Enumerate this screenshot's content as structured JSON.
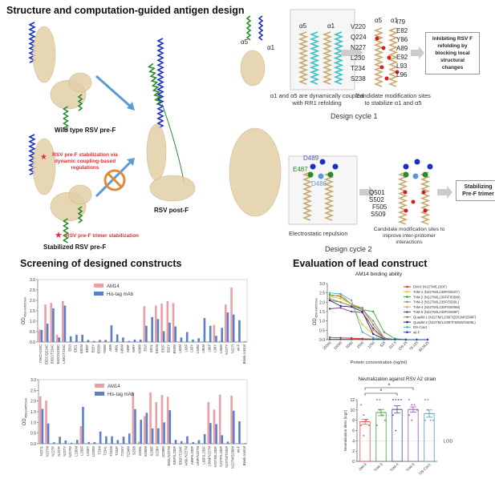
{
  "panel_a": {
    "title": "Structure and computation-guided antigen design",
    "wild_type_label": "Wild type RSV pre-F",
    "post_f_label": "RSV post-F",
    "stabilized_label": "Stabilized RSV pre-F",
    "annotation_coupling": "RSV pre-F stabilization via dynamic coupling-based regulations",
    "annotation_trimer": "RSV pre-F trimer stabilization",
    "cycle1": {
      "title": "Design cycle 1",
      "helix_labels": [
        "α5",
        "α1"
      ],
      "caption_left": "α1 and α5 are dynamically coupled with RR1 refolding",
      "caption_right": "Candidate modification sites to stabilize α1 and α5",
      "residues_left": [
        "V220",
        "Q224",
        "N227",
        "L230",
        "T234",
        "S238"
      ],
      "residues_right": [
        "I79",
        "E82",
        "Y86",
        "A89",
        "E92",
        "L93",
        "L96"
      ],
      "outcome": "Inhibiting RSV F refolding by blocking local structural changes"
    },
    "cycle2": {
      "title": "Design cycle 2",
      "residues_charged": [
        "D489",
        "E487",
        "D486"
      ],
      "caption_left": "Electrostatic repulsion",
      "caption_right": "Candidate modification sites to improve inter-protomer interactions",
      "residues": [
        "Q501",
        "S502",
        "F505",
        "S509"
      ],
      "outcome": "Stabilizing Pre-F trimer"
    },
    "colors": {
      "blue_helix": "#1a2fc0",
      "green_helix": "#2a8a2a",
      "tan_ribbon": "#e3cfa8",
      "cyan_helix": "#3cc0c0",
      "arrow": "#5b9bd5",
      "block": "#e08a3a",
      "annotation": "#e03030"
    }
  },
  "panel_b": {
    "title": "Screening of designed constructs"
  },
  "panel_c": {
    "title": "Evaluation of lead construct"
  },
  "chart_data": [
    {
      "type": "bar",
      "title": "",
      "ylabel": "OD450nm/650nm",
      "ylim": [
        0,
        3.0
      ],
      "yticks": [
        "0.0",
        "0.5",
        "1.0",
        "1.5",
        "2.0",
        "2.5",
        "3.0"
      ],
      "legend_placement": "top-left",
      "categories": [
        "I79C/V220C",
        "E82C/Q224C",
        "E82C/T234C",
        "E82C/S238C",
        "L93C/T234C",
        "E82I",
        "E82L",
        "E82M",
        "E82F",
        "E82Y",
        "E82W",
        "Y86W",
        "A89I",
        "A89L",
        "A89M",
        "A89F",
        "A89Y",
        "A89W",
        "E92I",
        "E92L",
        "E92M",
        "E92F",
        "E92Y",
        "E92W",
        "L93M",
        "L93F",
        "L93Y",
        "L93W",
        "L96M",
        "L96F",
        "L96Y",
        "L96W",
        "N227Y",
        "N227I",
        "wt-F",
        "Blank control"
      ],
      "series": [
        {
          "name": "AM14",
          "color": "#e8a0a4",
          "values": [
            0.6,
            1.8,
            1.88,
            0.35,
            1.97,
            0,
            0,
            0,
            0,
            0,
            0,
            0,
            0,
            0,
            0,
            0,
            0,
            0,
            1.72,
            0,
            1.75,
            1.85,
            1.97,
            1.87,
            0,
            0,
            0,
            0,
            0,
            0,
            0.82,
            0.05,
            1.8,
            2.62,
            0,
            0
          ]
        },
        {
          "name": "His-tag mAb",
          "color": "#5b7fc8",
          "values": [
            0.58,
            0.88,
            1.62,
            0.22,
            1.75,
            0.28,
            0.35,
            0.35,
            0.1,
            0.05,
            0.1,
            0.1,
            0.8,
            0.37,
            0.22,
            0.05,
            0.12,
            0.12,
            0.78,
            1.2,
            1.1,
            0.52,
            0.93,
            0.75,
            0.22,
            0.48,
            0.12,
            0.18,
            1.15,
            0.78,
            0.3,
            0.68,
            1.42,
            1.32,
            1.05,
            0.03
          ]
        }
      ]
    },
    {
      "type": "bar",
      "title": "",
      "ylabel": "OD450nm/650nm",
      "ylim": [
        0,
        3.0
      ],
      "yticks": [
        "0.0",
        "0.5",
        "1.0",
        "1.5",
        "2.0",
        "2.5",
        "3.0"
      ],
      "legend_placement": "top-left",
      "categories": [
        "N227L",
        "N227M",
        "N227P",
        "N227F",
        "N227Y",
        "N227W",
        "L230M",
        "L230F",
        "L230Y",
        "L230W",
        "T234I",
        "T234L",
        "T234M",
        "T234F",
        "T234Y",
        "T234W",
        "S238I",
        "S238L",
        "S238M",
        "S238F",
        "S238Y",
        "S238W",
        "E82L/N227M",
        "E82F/L230F",
        "E82F/T234F",
        "A89L/N227M",
        "A89F/L230F",
        "L93F/N227M",
        "L93F/L230F",
        "L96M/N227M",
        "N227M/L230F",
        "N227F/L230F",
        "N227M/T234F",
        "N227M/S238M",
        "wt-F",
        "Blank control"
      ],
      "series": [
        {
          "name": "AM14",
          "color": "#e8a0a4",
          "values": [
            2.22,
            2.02,
            0,
            0,
            0,
            0,
            0,
            0.83,
            0,
            0,
            0,
            0,
            0,
            0,
            0,
            0,
            2.4,
            0.1,
            1.3,
            2.4,
            1.95,
            2.28,
            2.2,
            0,
            0,
            0.05,
            0,
            0,
            0,
            1.95,
            1.6,
            2.3,
            0,
            2.25,
            0,
            0
          ]
        },
        {
          "name": "His-tag mAb",
          "color": "#5b7fc8",
          "values": [
            1.63,
            0.95,
            0.07,
            0.33,
            0.15,
            0.05,
            0.18,
            1.73,
            0.08,
            0.08,
            0.57,
            0.35,
            0.35,
            0.17,
            0.33,
            0.48,
            1.62,
            1.12,
            1.45,
            0.72,
            0.72,
            1.0,
            1.57,
            0.18,
            0.12,
            0.35,
            0.08,
            0.17,
            0.45,
            0.97,
            0.92,
            0.4,
            0.1,
            1.55,
            1.05,
            0.03
          ]
        }
      ]
    },
    {
      "type": "line",
      "title": "AM14 binding ability",
      "xlabel": "Protein concentration (ng/ml)",
      "ylabel": "OD450nm/650nm",
      "ylim": [
        0,
        3.0
      ],
      "yticks": [
        "0.0",
        "0.5",
        "1.0",
        "1.5",
        "2.0",
        "2.5",
        "3.0"
      ],
      "legend_placement": "right",
      "categories": [
        "20000",
        "10000",
        "5000",
        "2500",
        "1250",
        "625",
        "312.5",
        "156.25",
        "78.125",
        "39.0625"
      ],
      "series": [
        {
          "name": "DM-9 (N227M/L230F)",
          "color": "#d9302c",
          "values": [
            0.12,
            0.1,
            0.08,
            0.05,
            0.03,
            0.02,
            0,
            0,
            0,
            0
          ]
        },
        {
          "name": "TriM-1 (N227M/L230F/S502Y)",
          "color": "#e6c229",
          "values": [
            2.3,
            2.2,
            1.9,
            0.8,
            0.3,
            0.05,
            0,
            0,
            0,
            0
          ]
        },
        {
          "name": "TriM-2 (N227M/L230F/F505W)",
          "color": "#3aa63a",
          "values": [
            2.4,
            2.3,
            1.9,
            1.6,
            1.5,
            0.4,
            0.05,
            0,
            0,
            0
          ]
        },
        {
          "name": "TriM-3 (N227M/L230F/S509L)",
          "color": "#8c8c8c",
          "values": [
            2.2,
            2.0,
            1.8,
            1.6,
            1.0,
            0.1,
            0,
            0,
            0,
            0
          ]
        },
        {
          "name": "TriM-4 (N227M/L230F/S509M)",
          "color": "#f0a040",
          "values": [
            2.3,
            2.4,
            1.9,
            1.7,
            0.5,
            0.05,
            0,
            0,
            0,
            0
          ]
        },
        {
          "name": "TriM-5 (N227M/L230F/S509F)",
          "color": "#7a3a9a",
          "values": [
            1.65,
            1.7,
            1.5,
            1.45,
            0.6,
            0.05,
            0,
            0,
            0,
            0
          ]
        },
        {
          "name": "QuadM-1 (N227M/L230F/Q501M/S509F)",
          "color": "#8a8a50",
          "values": [
            2.1,
            2.0,
            1.8,
            1.7,
            0.8,
            0.05,
            0,
            0,
            0,
            0
          ]
        },
        {
          "name": "QuadM-2 (N227M/L230F/F505W/S509L)",
          "color": "#2a2a6a",
          "values": [
            2.1,
            1.8,
            1.75,
            1.5,
            0.3,
            0.02,
            0,
            0,
            0,
            0
          ]
        },
        {
          "name": "DS-Cav1",
          "color": "#4ab0c8",
          "values": [
            2.5,
            2.45,
            2.1,
            0.4,
            0.1,
            0.02,
            0,
            0,
            0,
            0
          ]
        },
        {
          "name": "wt-F",
          "color": "#3040b0",
          "values": [
            0.02,
            0.02,
            0.02,
            0.02,
            0.02,
            0.02,
            0.02,
            0,
            0,
            0
          ]
        }
      ]
    },
    {
      "type": "bar",
      "title": "Neutralization against RSV A2 strain",
      "ylabel": "Neutralization titres (log2)",
      "ylim": [
        0,
        12
      ],
      "yticks": [
        "0",
        "2",
        "4",
        "6",
        "8",
        "10",
        "12"
      ],
      "categories": [
        "DM-9",
        "TriM-3",
        "TriM-4",
        "TriM-5",
        "DS-Cav1"
      ],
      "colors": [
        "#e05050",
        "#4a9a4a",
        "#4a4aa0",
        "#9a5aa8",
        "#5a9aaa"
      ],
      "values": [
        7.7,
        9.5,
        10.1,
        10.1,
        9.3
      ],
      "errors": [
        0.5,
        0.6,
        0.7,
        0.5,
        0.7
      ],
      "points": [
        [
          11,
          9,
          8,
          7,
          7,
          5
        ],
        [
          12,
          12,
          9,
          8,
          7,
          10
        ],
        [
          12,
          12,
          12,
          12,
          9,
          6
        ],
        [
          12,
          11,
          11,
          10,
          9,
          8
        ],
        [
          12,
          12,
          8,
          8,
          8,
          10
        ]
      ],
      "lod": {
        "value": 4,
        "label": "LOD"
      },
      "significance": [
        {
          "from": "DM-9",
          "to": "TriM-4",
          "label": "*"
        },
        {
          "from": "DM-9",
          "to": "TriM-5",
          "label": "*"
        }
      ]
    }
  ]
}
